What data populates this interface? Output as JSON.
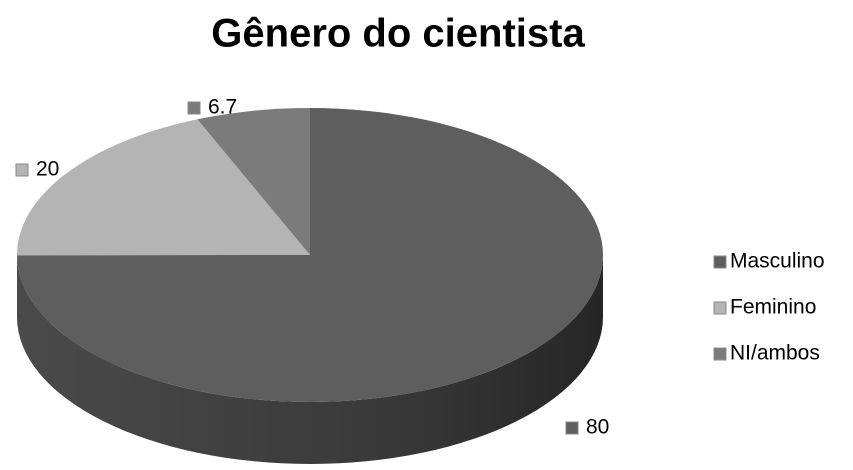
{
  "chart_data": {
    "type": "pie",
    "title": "Gênero do cientista",
    "categories": [
      "Masculino",
      "Feminino",
      "NI/ambos"
    ],
    "values": [
      80,
      20,
      6.7
    ],
    "colors": [
      "#5e5e5e",
      "#b4b4b4",
      "#7b7b7b"
    ],
    "legend": "right"
  }
}
